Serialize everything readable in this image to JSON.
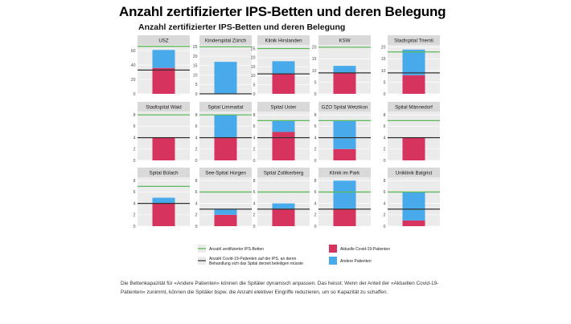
{
  "page": {
    "headline": "Anzahl zertifizierter IPS-Betten und deren Belegung",
    "caption": "Die Bettenkapazität für «Andere Patienten» können die Spitäler dynamisch anpassen. Das heisst: Wenn der Anteil der «Aktuellen Covid-19-Patienten» zunimmt, können die Spitäler bspw. die Anzahl elektiver Eingriffe reduzieren, um so Kapazität zu schaffen."
  },
  "chart_data": {
    "type": "bar",
    "title": "Anzahl zertifizierter IPS-Betten und deren Belegung",
    "colors": {
      "covid": "#d6335e",
      "andere": "#48aaea",
      "certified_line": "#5cb85c",
      "icu_covid_line": "#333333",
      "panel_bg": "#ebebeb",
      "strip_bg": "#d9d9d9",
      "grid": "#ffffff"
    },
    "legend": {
      "position": "bottom",
      "items": [
        {
          "key": "certified_line",
          "label": "Anzahl zertifizierter IPS-Betten",
          "kind": "line"
        },
        {
          "key": "icu_covid_line",
          "label": "Anzahl Covid-19-Patienten auf der IPS, an deren Behandlung sich das Spital derzeit beteiligen müsste",
          "kind": "line"
        },
        {
          "key": "covid",
          "label": "Aktuelle Covid-19-Patienten",
          "kind": "box"
        },
        {
          "key": "andere",
          "label": "Andere Patienten",
          "kind": "box"
        }
      ]
    },
    "panels": [
      {
        "name": "USZ",
        "ylim": [
          0,
          68
        ],
        "ticks": [
          0,
          20,
          40,
          60
        ],
        "covid": 36,
        "andere": 25,
        "certified": 66,
        "icu_covid_line": 33
      },
      {
        "name": "Kinderspital Zürich",
        "ylim": [
          0,
          26
        ],
        "ticks": [
          0,
          5,
          10,
          15,
          20,
          25
        ],
        "covid": 0,
        "andere": 17,
        "certified": 25,
        "icu_covid_line": 0
      },
      {
        "name": "Klinik Hirslanden",
        "ylim": [
          0,
          27
        ],
        "ticks": [
          0,
          5,
          10,
          15,
          20,
          25
        ],
        "covid": 11,
        "andere": 7,
        "certified": 25,
        "icu_covid_line": 11
      },
      {
        "name": "KSW",
        "ylim": [
          0,
          21
        ],
        "ticks": [
          0,
          5,
          10,
          15,
          20
        ],
        "covid": 9,
        "andere": 3,
        "certified": 20,
        "icu_covid_line": 9
      },
      {
        "name": "Stadtspital Triemli",
        "ylim": [
          0,
          21
        ],
        "ticks": [
          0,
          5,
          10,
          15,
          20
        ],
        "covid": 8,
        "andere": 11,
        "certified": 18,
        "icu_covid_line": 9
      },
      {
        "name": "Stadtspital Waid",
        "ylim": [
          0,
          8.6
        ],
        "ticks": [
          0,
          2,
          4,
          6,
          8
        ],
        "covid": 4,
        "andere": 0,
        "certified": 8,
        "icu_covid_line": 4
      },
      {
        "name": "Spital Limmattal",
        "ylim": [
          0,
          8.6
        ],
        "ticks": [
          0,
          2,
          4,
          6,
          8
        ],
        "covid": 4,
        "andere": 4,
        "certified": 8,
        "icu_covid_line": 4
      },
      {
        "name": "Spital Uster",
        "ylim": [
          0,
          8.6
        ],
        "ticks": [
          0,
          2,
          4,
          6,
          8
        ],
        "covid": 5,
        "andere": 2,
        "certified": 7,
        "icu_covid_line": 4
      },
      {
        "name": "GZO Spital Wetzikon",
        "ylim": [
          0,
          8.6
        ],
        "ticks": [
          0,
          2,
          4,
          6,
          8
        ],
        "covid": 2,
        "andere": 5,
        "certified": 7,
        "icu_covid_line": 4
      },
      {
        "name": "Spital Männedorf",
        "ylim": [
          0,
          8.6
        ],
        "ticks": [
          0,
          2,
          4,
          6,
          8
        ],
        "covid": 4,
        "andere": 0,
        "certified": 7,
        "icu_covid_line": 4
      },
      {
        "name": "Spital Bülach",
        "ylim": [
          0,
          8.6
        ],
        "ticks": [
          0,
          2,
          4,
          6,
          8
        ],
        "covid": 4,
        "andere": 1,
        "certified": 7,
        "icu_covid_line": 4
      },
      {
        "name": "See-Spital Horgen",
        "ylim": [
          0,
          8.6
        ],
        "ticks": [
          0,
          2,
          4,
          6,
          8
        ],
        "covid": 2,
        "andere": 1,
        "certified": 6,
        "icu_covid_line": 3
      },
      {
        "name": "Spital Zollikerberg",
        "ylim": [
          0,
          8.6
        ],
        "ticks": [
          0,
          2,
          4,
          6,
          8
        ],
        "covid": 3,
        "andere": 1,
        "certified": 6,
        "icu_covid_line": 3
      },
      {
        "name": "Klinik im Park",
        "ylim": [
          0,
          8.6
        ],
        "ticks": [
          0,
          2,
          4,
          6,
          8
        ],
        "covid": 3,
        "andere": 5,
        "certified": 6,
        "icu_covid_line": 3
      },
      {
        "name": "Uniklinik Balgrist",
        "ylim": [
          0,
          8.6
        ],
        "ticks": [
          0,
          2,
          4,
          6,
          8
        ],
        "covid": 1,
        "andere": 5,
        "certified": 6,
        "icu_covid_line": 3
      }
    ]
  }
}
